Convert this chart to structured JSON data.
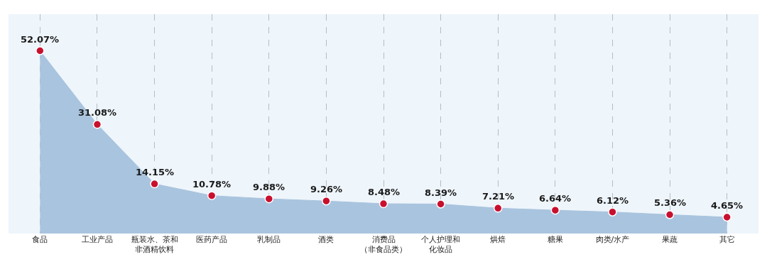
{
  "chart_data": {
    "type": "area",
    "categories": [
      "食品",
      "工业产品",
      "瓶装水、茶和非酒精饮料",
      "医药产品",
      "乳制品",
      "酒类",
      "消费品（非食品类）",
      "个人护理和化妆品",
      "烘焙",
      "糖果",
      "肉类/水产",
      "果蔬",
      "其它"
    ],
    "series": [
      {
        "color": "#a9c4de",
        "colors": [
          "#c8102e",
          "#c8102e",
          "#c8102e",
          "#c8102e",
          "#c8102e",
          "#c8102e",
          "#c8102e",
          "#c8102e",
          "#c8102e",
          "#c8102e",
          "#c8102e",
          "#c8102e",
          "#c8102e"
        ],
        "values": [
          52.07,
          31.08,
          14.15,
          10.78,
          9.88,
          9.26,
          8.48,
          8.39,
          7.21,
          6.64,
          6.12,
          5.36,
          4.65
        ],
        "value_labels": [
          "52.07%",
          "31.08%",
          "14.15%",
          "10.78%",
          "9.88%",
          "9.26%",
          "8.48%",
          "8.39%",
          "7.21%",
          "6.64%",
          "6.12%",
          "5.36%",
          "4.65%"
        ]
      }
    ],
    "marker": "circle",
    "grid": "x",
    "tick_labels": "x"
  }
}
